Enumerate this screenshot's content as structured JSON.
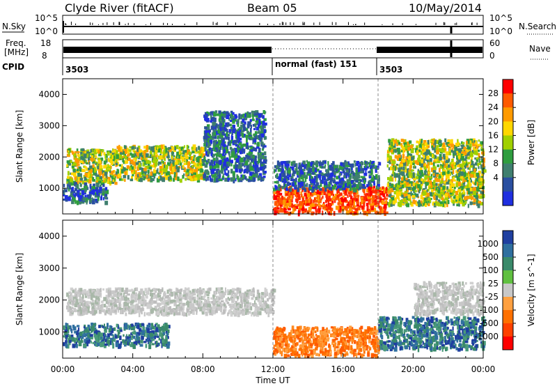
{
  "header": {
    "station": "Clyde River (fitACF)",
    "beam": "Beam 05",
    "date": "10/May/2014"
  },
  "status_panels": {
    "nsky_label": "N.Sky",
    "nsky_ticks": [
      "10^5",
      "10^0"
    ],
    "nsearch_label": "N.Search",
    "nsearch_ticks": [
      "10^5",
      "10^0"
    ],
    "freq_label_1": "Freq.",
    "freq_label_2": "[MHz]",
    "freq_ticks": [
      "18",
      "8"
    ],
    "nave_label": "Nave",
    "nave_ticks": [
      "60",
      "0"
    ],
    "cpid_label": "CPID",
    "cpid_segments": [
      {
        "label": "3503",
        "start_hour": 0
      },
      {
        "label": "normal (fast) 151",
        "start_hour": 12
      },
      {
        "label": "3503",
        "start_hour": 18
      }
    ]
  },
  "chart_data": [
    {
      "type": "heatmap",
      "name": "power-panel",
      "xlabel": "Time UT",
      "ylabel": "Slant Range [km]",
      "xlim": [
        0,
        24
      ],
      "ylim": [
        180,
        4500
      ],
      "x_ticks": [
        "00:00",
        "04:00",
        "08:00",
        "12:00",
        "16:00",
        "20:00",
        "00:00"
      ],
      "y_ticks": [
        1000,
        2000,
        3000,
        4000
      ],
      "colorbar": {
        "label": "Power [dB]",
        "ticks": [
          "28",
          "24",
          "20",
          "16",
          "12",
          "8",
          "4"
        ],
        "colors": [
          "#ff0000",
          "#ff5a00",
          "#ff9a00",
          "#ffd700",
          "#a0d000",
          "#2f9d3f",
          "#3f7f6f",
          "#2a4fa0",
          "#1f2fe0"
        ]
      },
      "regions": [
        {
          "t": [
            0.2,
            3.0
          ],
          "r": [
            1200,
            2300
          ],
          "level": "medium"
        },
        {
          "t": [
            3.0,
            8.0
          ],
          "r": [
            1300,
            2400
          ],
          "level": "medium"
        },
        {
          "t": [
            8.0,
            11.5
          ],
          "r": [
            1300,
            3500
          ],
          "level": "low"
        },
        {
          "t": [
            0.0,
            2.5
          ],
          "r": [
            600,
            1200
          ],
          "level": "low"
        },
        {
          "t": [
            12.0,
            18.5
          ],
          "r": [
            250,
            1100
          ],
          "level": "high"
        },
        {
          "t": [
            12.0,
            18.0
          ],
          "r": [
            1000,
            1900
          ],
          "level": "low"
        },
        {
          "t": [
            18.5,
            24.0
          ],
          "r": [
            500,
            2600
          ],
          "level": "medium"
        }
      ]
    },
    {
      "type": "heatmap",
      "name": "velocity-panel",
      "xlabel": "Time UT",
      "ylabel": "Slant Range [km]",
      "xlim": [
        0,
        24
      ],
      "ylim": [
        180,
        4500
      ],
      "x_ticks": [
        "00:00",
        "04:00",
        "08:00",
        "12:00",
        "16:00",
        "20:00",
        "00:00"
      ],
      "y_ticks": [
        1000,
        2000,
        3000,
        4000
      ],
      "colorbar": {
        "label": "Velocity [m s^-1]",
        "ticks": [
          "1000",
          "500",
          "100",
          "25",
          "-25",
          "-100",
          "-500",
          "-1000"
        ],
        "colors": [
          "#1f3fa0",
          "#2f6f9f",
          "#3a8a6a",
          "#60c040",
          "#c8c8c8",
          "#ffa040",
          "#ff7000",
          "#ff4000",
          "#ff0000"
        ]
      },
      "regions": [
        {
          "t": [
            0.2,
            12.0
          ],
          "r": [
            1600,
            2400
          ],
          "level": "near-zero"
        },
        {
          "t": [
            0.0,
            6.0
          ],
          "r": [
            600,
            1300
          ],
          "level": "positive"
        },
        {
          "t": [
            12.0,
            18.0
          ],
          "r": [
            300,
            1200
          ],
          "level": "negative"
        },
        {
          "t": [
            18.0,
            24.0
          ],
          "r": [
            500,
            1500
          ],
          "level": "positive"
        },
        {
          "t": [
            20.0,
            24.0
          ],
          "r": [
            1600,
            2600
          ],
          "level": "near-zero"
        }
      ]
    }
  ]
}
